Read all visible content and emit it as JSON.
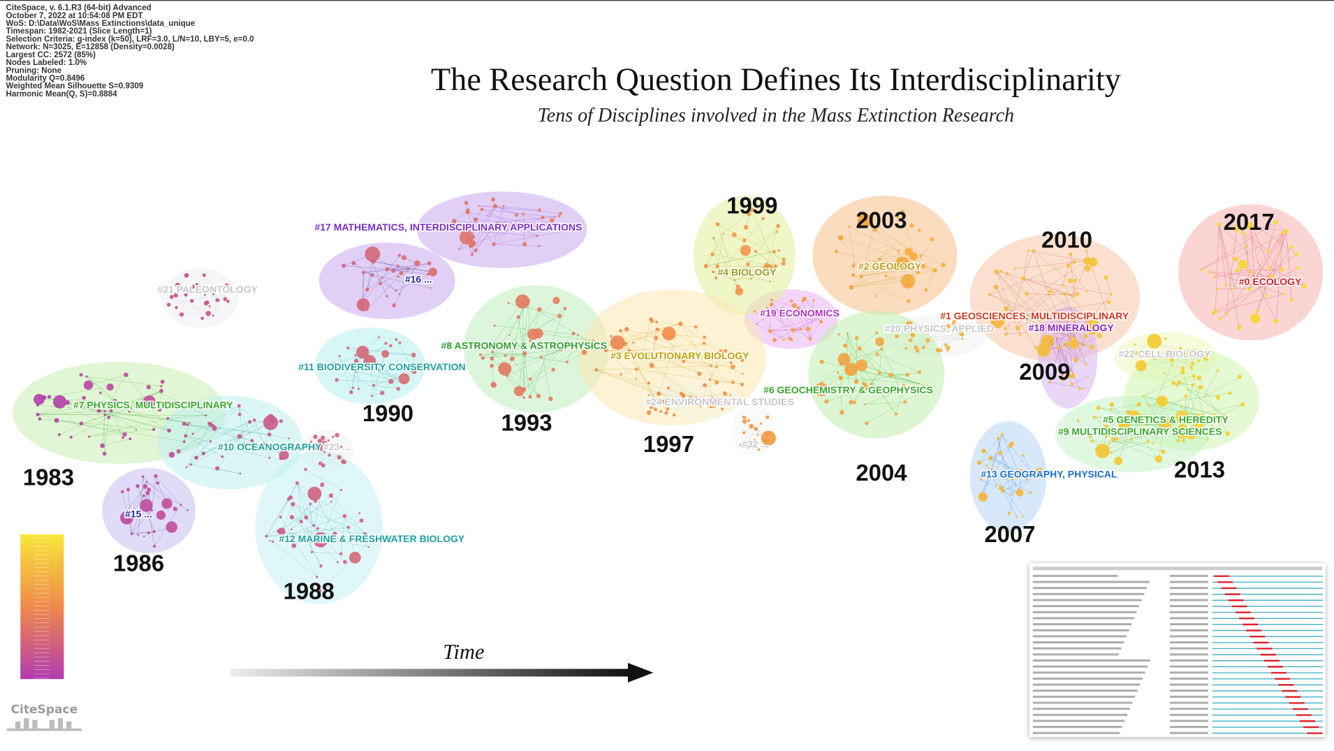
{
  "header": {
    "info": [
      "CiteSpace, v. 6.1.R3 (64-bit) Advanced",
      "October 7, 2022 at 10:54:08 PM EDT",
      "WoS: D:\\Data\\WoS\\Mass Extinctions\\data_unique",
      "Timespan: 1982-2021 (Slice Length=1)",
      "Selection Criteria: g-index (k=50), LRF=3.0, L/N=10, LBY=5, e=0.0",
      "Network: N=3025, E=12858 (Density=0.0028)",
      "Largest CC: 2572 (85%)",
      "Nodes Labeled: 1.0%",
      "Pruning: None",
      "Modularity Q=0.8496",
      "Weighted Mean Silhouette S=0.9309",
      "Harmonic Mean(Q, S)=0.8884"
    ],
    "title": "The Research Question Defines Its Interdisciplinarity",
    "subtitle": "Tens of Disciplines involved in the Mass Extinction Research"
  },
  "clusters": [
    {
      "label": "#17 MATHEMATICS, INTERDISCIPLINARY APPLICATIONS",
      "color": "#7a2fc4"
    },
    {
      "label": "#21 PALEONTOLOGY",
      "color": "#c8c8c8"
    },
    {
      "label": "#16 ...",
      "color": "#2a2aa8"
    },
    {
      "label": "#19 ECONOMICS",
      "color": "#b22fc4"
    },
    {
      "label": "#4 BIOLOGY",
      "color": "#9aa01e"
    },
    {
      "label": "#2 GEOLOGY",
      "color": "#c49a10"
    },
    {
      "label": "#0 ECOLOGY",
      "color": "#d0202a"
    },
    {
      "label": "#1 GEOSCIENCES, MULTIDISCIPLINARY",
      "color": "#cc3a1a"
    },
    {
      "label": "#18 MINERALOGY",
      "color": "#8a22c4"
    },
    {
      "label": "#20 PHYSICS, APPLIED",
      "color": "#c8c8c8"
    },
    {
      "label": "#22 CELL BIOLOGY",
      "color": "#c8c8c8"
    },
    {
      "label": "#8 ASTRONOMY & ASTROPHYSICS",
      "color": "#2aa02a"
    },
    {
      "label": "#11 BIODIVERSITY CONSERVATION",
      "color": "#1ea0a0"
    },
    {
      "label": "#3 EVOLUTIONARY BIOLOGY",
      "color": "#c0a000"
    },
    {
      "label": "#6 GEOCHEMISTRY & GEOPHYSICS",
      "color": "#38a82a"
    },
    {
      "label": "#24 ENVIRONMENTAL STUDIES",
      "color": "#c8c8c8"
    },
    {
      "label": "#5 GENETICS & HEREDITY",
      "color": "#38a82a"
    },
    {
      "label": "#9 MULTIDISCIPLINARY SCIENCES",
      "color": "#38a82a"
    },
    {
      "label": "#7 PHYSICS, MULTIDISCIPLINARY",
      "color": "#38a82a"
    },
    {
      "label": "#10 OCEANOGRAPHY",
      "color": "#1ea0a0"
    },
    {
      "label": "#23 ...",
      "color": "#c8c8c8"
    },
    {
      "label": "#32 ...",
      "color": "#c8c8c8"
    },
    {
      "label": "#13 GEOGRAPHY, PHYSICAL",
      "color": "#1a6fd0"
    },
    {
      "label": "#15 ...",
      "color": "#2a2aa8"
    },
    {
      "label": "#12 MARINE & FRESHWATER BIOLOGY",
      "color": "#1ea0a0"
    }
  ],
  "years": [
    "1999",
    "2003",
    "2010",
    "2017",
    "1990",
    "1993",
    "1997",
    "2009",
    "2004",
    "2013",
    "1983",
    "1986",
    "1988",
    "2007"
  ],
  "time_label": "Time",
  "logo": "CiteSpace"
}
